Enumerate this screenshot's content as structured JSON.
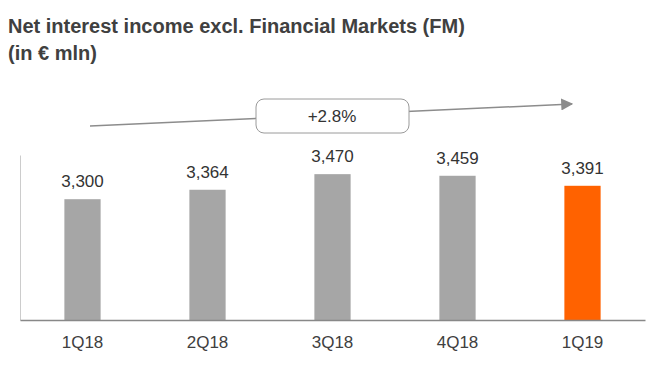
{
  "chart_data": {
    "type": "bar",
    "title": "Net interest income excl. Financial Markets (FM)",
    "subtitle": "(in € mln)",
    "annotation": "+2.8%",
    "categories": [
      "1Q18",
      "2Q18",
      "3Q18",
      "4Q18",
      "1Q19"
    ],
    "values": [
      3300,
      3364,
      3470,
      3459,
      3391
    ],
    "value_labels": [
      "3,300",
      "3,364",
      "3,470",
      "3,459",
      "3,391"
    ],
    "colors": [
      "#a6a6a6",
      "#a6a6a6",
      "#a6a6a6",
      "#a6a6a6",
      "#ff6200"
    ],
    "ylim": [
      2480,
      3600
    ],
    "yticks": [],
    "grid": false,
    "data_labels": true,
    "tick_labels": "x"
  }
}
